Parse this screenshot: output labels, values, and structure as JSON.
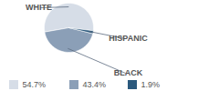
{
  "chart_data": {
    "type": "pie",
    "categories": [
      "WHITE",
      "BLACK",
      "HISPANIC"
    ],
    "values": [
      54.7,
      43.4,
      1.9
    ],
    "value_labels": [
      "54.7%",
      "43.4%",
      "1.9%"
    ],
    "colors": [
      "#d6dde7",
      "#8b9fb7",
      "#2b597d"
    ],
    "data_labels": true,
    "legend": "bottom"
  }
}
